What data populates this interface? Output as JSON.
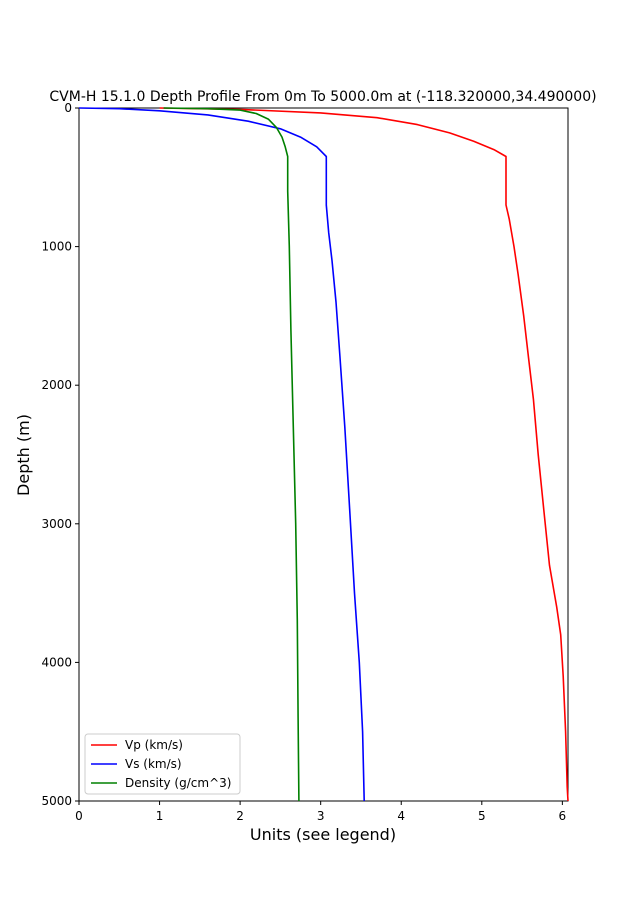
{
  "chart_data": {
    "type": "line",
    "title": "CVM-H 15.1.0 Depth Profile From 0m To 5000.0m at (-118.320000,34.490000)",
    "xlabel": "Units (see legend)",
    "ylabel": "Depth (m)",
    "xlim": [
      0,
      6.07
    ],
    "ylim": [
      5000,
      0
    ],
    "y_inverted": true,
    "x_ticks": [
      "0",
      "1",
      "2",
      "3",
      "4",
      "5",
      "6"
    ],
    "y_ticks": [
      "0",
      "1000",
      "2000",
      "3000",
      "4000",
      "5000"
    ],
    "legend_position": "lower-left",
    "grid": false,
    "series": [
      {
        "name": "Vp (km/s)",
        "color": "#ff0000",
        "points": [
          [
            1.0,
            0
          ],
          [
            2.0,
            10
          ],
          [
            3.0,
            35
          ],
          [
            3.7,
            70
          ],
          [
            4.2,
            120
          ],
          [
            4.6,
            180
          ],
          [
            4.9,
            240
          ],
          [
            5.15,
            300
          ],
          [
            5.3,
            350
          ],
          [
            5.3,
            700
          ],
          [
            5.34,
            800
          ],
          [
            5.37,
            900
          ],
          [
            5.4,
            1000
          ],
          [
            5.45,
            1200
          ],
          [
            5.52,
            1500
          ],
          [
            5.58,
            1800
          ],
          [
            5.64,
            2100
          ],
          [
            5.7,
            2500
          ],
          [
            5.77,
            2900
          ],
          [
            5.84,
            3300
          ],
          [
            5.93,
            3600
          ],
          [
            5.98,
            3800
          ],
          [
            6.01,
            4100
          ],
          [
            6.04,
            4500
          ],
          [
            6.06,
            4900
          ],
          [
            6.07,
            5000
          ]
        ]
      },
      {
        "name": "Vs (km/s)",
        "color": "#0000ff",
        "points": [
          [
            0,
            0
          ],
          [
            0.5,
            5
          ],
          [
            1.0,
            20
          ],
          [
            1.6,
            50
          ],
          [
            2.1,
            95
          ],
          [
            2.5,
            150
          ],
          [
            2.75,
            210
          ],
          [
            2.95,
            280
          ],
          [
            3.07,
            350
          ],
          [
            3.07,
            700
          ],
          [
            3.1,
            900
          ],
          [
            3.14,
            1100
          ],
          [
            3.19,
            1400
          ],
          [
            3.24,
            1800
          ],
          [
            3.3,
            2300
          ],
          [
            3.36,
            2900
          ],
          [
            3.42,
            3500
          ],
          [
            3.48,
            4000
          ],
          [
            3.52,
            4500
          ],
          [
            3.54,
            5000
          ]
        ]
      },
      {
        "name": "Density (g/cm^3)",
        "color": "#008000",
        "points": [
          [
            1.05,
            0
          ],
          [
            1.6,
            5
          ],
          [
            2.0,
            15
          ],
          [
            2.2,
            40
          ],
          [
            2.35,
            80
          ],
          [
            2.45,
            140
          ],
          [
            2.52,
            210
          ],
          [
            2.56,
            280
          ],
          [
            2.59,
            350
          ],
          [
            2.59,
            600
          ],
          [
            2.61,
            1000
          ],
          [
            2.63,
            1600
          ],
          [
            2.66,
            2300
          ],
          [
            2.69,
            3000
          ],
          [
            2.71,
            3700
          ],
          [
            2.72,
            4400
          ],
          [
            2.73,
            5000
          ]
        ]
      }
    ]
  }
}
